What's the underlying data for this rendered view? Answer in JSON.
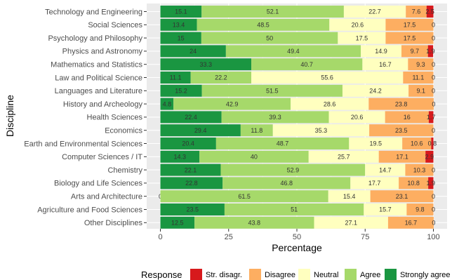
{
  "chart_data": {
    "type": "bar",
    "orientation": "horizontal",
    "stacked": true,
    "xlabel": "Percentage",
    "ylabel": "Discipline",
    "xlim": [
      0,
      100
    ],
    "xticks": [
      0,
      25,
      50,
      75,
      100
    ],
    "grid": true,
    "legend_title": "Response",
    "legend_position": "bottom",
    "categories": [
      "Technology and Engineering",
      "Social Sciences",
      "Psychology and Philosophy",
      "Physics and Astronomy",
      "Mathematics and Statistics",
      "Law and Political Science",
      "Languages and Literature",
      "History and Archeology",
      "Health Sciences",
      "Economics",
      "Earth and Environmental Sciences",
      "Computer Sciences / IT",
      "Chemistry",
      "Biology and Life Sciences",
      "Arts and Architecture",
      "Agriculture and Food Sciences",
      "Other Disciplines"
    ],
    "series": [
      {
        "name": "Strongly agree",
        "color": "#1a9641",
        "values": [
          15.1,
          13.4,
          15,
          24,
          33.3,
          11.1,
          15.2,
          4.8,
          22.4,
          29.4,
          20.4,
          14.3,
          22.1,
          22.8,
          0,
          23.5,
          12.5
        ],
        "labels": [
          "15.1",
          "13.4",
          "15",
          "24",
          "33.3",
          "11.1",
          "15.2",
          "4.8",
          "22.4",
          "29.4",
          "20.4",
          "14.3",
          "22.1",
          "22.8",
          "0",
          "23.5",
          "12.5"
        ]
      },
      {
        "name": "Agree",
        "color": "#a6d96a",
        "values": [
          52.1,
          48.5,
          50,
          49.4,
          40.7,
          22.2,
          51.5,
          42.9,
          39.3,
          11.8,
          48.7,
          40,
          52.9,
          46.8,
          61.5,
          51,
          43.8
        ],
        "labels": [
          "52.1",
          "48.5",
          "50",
          "49.4",
          "40.7",
          "22.2",
          "51.5",
          "42.9",
          "39.3",
          "11.8",
          "48.7",
          "40",
          "52.9",
          "46.8",
          "61.5",
          "51",
          "43.8"
        ]
      },
      {
        "name": "Neutral",
        "color": "#ffffbf",
        "values": [
          22.7,
          20.6,
          17.5,
          14.9,
          16.7,
          55.6,
          24.2,
          28.6,
          20.6,
          35.3,
          19.5,
          25.7,
          14.7,
          17.7,
          15.4,
          15.7,
          27.1
        ],
        "labels": [
          "22.7",
          "20.6",
          "17.5",
          "14.9",
          "16.7",
          "55.6",
          "24.2",
          "28.6",
          "20.6",
          "35.3",
          "19.5",
          "25.7",
          "14.7",
          "17.7",
          "15.4",
          "15.7",
          "27.1"
        ]
      },
      {
        "name": "Disagree",
        "color": "#fdae61",
        "values": [
          7.6,
          17.5,
          17.5,
          9.7,
          9.3,
          11.1,
          9.1,
          23.8,
          16,
          23.5,
          10.6,
          17.1,
          10.3,
          10.8,
          23.1,
          9.8,
          16.7
        ],
        "labels": [
          "7.6",
          "17.5",
          "17.5",
          "9.7",
          "9.3",
          "11.1",
          "9.1",
          "23.8",
          "16",
          "23.5",
          "10.6",
          "17.1",
          "10.3",
          "10.8",
          "23.1",
          "9.8",
          "16.7"
        ]
      },
      {
        "name": "Str. disagr.",
        "color": "#d7191c",
        "values": [
          2.5,
          0,
          0,
          1.9,
          0,
          0,
          0,
          0,
          1.7,
          0,
          0.8,
          2.9,
          0,
          1.9,
          0,
          0,
          0
        ],
        "labels": [
          "2.5",
          "0",
          "0",
          "1.9",
          "0",
          "0",
          "0",
          "0",
          "1.7",
          "0",
          "0.8",
          "2.9",
          "0",
          "1.9",
          "0",
          "0",
          "0"
        ]
      }
    ],
    "legend_order": [
      "Str. disagr.",
      "Disagree",
      "Neutral",
      "Agree",
      "Strongly agree"
    ]
  }
}
